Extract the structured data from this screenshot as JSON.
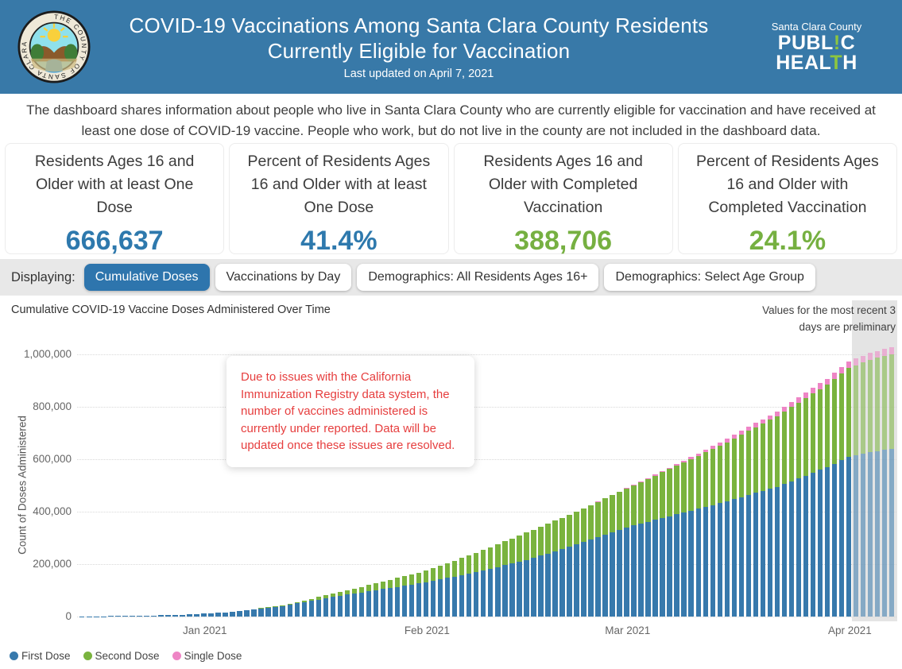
{
  "header": {
    "title_line1": "COVID-19 Vaccinations Among Santa Clara County Residents",
    "title_line2": "Currently Eligible for Vaccination",
    "last_updated": "Last updated on April 7, 2021",
    "seal_ring_text": "THE COUNTY OF SANTA CLARA",
    "ph_logo": {
      "line1": "Santa Clara County",
      "pub_a": "PUBL",
      "pub_b": "!",
      "pub_c": "C",
      "health_a": "HEAL",
      "health_b": "T",
      "health_c": "H",
      "accent_color": "#8dc63f"
    }
  },
  "intro": "The dashboard shares information about people who live in Santa Clara County who are currently eligible for vaccination and have received at least one dose of COVID-19 vaccine. People who work, but do not live in the county are not included in the dashboard data.",
  "stats": [
    {
      "label": "Residents Ages 16 and Older with at least One Dose",
      "value": "666,637",
      "color": "#2e79ad"
    },
    {
      "label": "Percent of Residents Ages 16 and Older with at least One Dose",
      "value": "41.4%",
      "color": "#2e79ad"
    },
    {
      "label": "Residents Ages 16 and Older with Completed Vaccination",
      "value": "388,706",
      "color": "#76b041"
    },
    {
      "label": "Percent of Residents Ages 16 and Older with Completed Vaccination",
      "value": "24.1%",
      "color": "#76b041"
    }
  ],
  "tabs": {
    "prefix": "Displaying:",
    "items": [
      {
        "label": "Cumulative Doses",
        "active": true
      },
      {
        "label": "Vaccinations by Day",
        "active": false
      },
      {
        "label": "Demographics: All Residents Ages 16+",
        "active": false
      },
      {
        "label": "Demographics: Select Age Group",
        "active": false
      }
    ]
  },
  "chart": {
    "title": "Cumulative COVID-19 Vaccine Doses Administered Over Time",
    "note": "Values for the most recent 3 days are preliminary"
  },
  "annotation": "Due to issues with the California Immunization Registry data system, the number of vaccines administered is currently under reported. Data will be updated once these issues are resolved.",
  "chart_data": {
    "type": "bar",
    "stacked": true,
    "title": "Cumulative COVID-19 Vaccine Doses Administered Over Time",
    "xlabel": "",
    "ylabel": "Count of Doses Administered",
    "ylim": [
      0,
      1000000
    ],
    "ytick_step": 200000,
    "ytick_labels": [
      "0",
      "200,000",
      "400,000",
      "600,000",
      "800,000",
      "1,000,000"
    ],
    "grid": "horizontal dotted",
    "legend_position": "bottom-left",
    "start_date": "2020-12-15",
    "end_date": "2021-04-07",
    "days": 114,
    "xticks": [
      {
        "label": "Jan 2021",
        "day": 17
      },
      {
        "label": "Feb 2021",
        "day": 48
      },
      {
        "label": "Mar 2021",
        "day": 76
      },
      {
        "label": "Apr 2021",
        "day": 107
      }
    ],
    "series": [
      {
        "name": "First Dose",
        "color": "#3779ac"
      },
      {
        "name": "Second Dose",
        "color": "#7ab33e"
      },
      {
        "name": "Single Dose",
        "color": "#ee85c5"
      }
    ],
    "interpolation": "cumulative daily values; linear between anchor days (estimated from pixels)",
    "anchors": [
      {
        "day": 0,
        "values": [
          300,
          0,
          0
        ]
      },
      {
        "day": 7,
        "values": [
          2500,
          0,
          0
        ]
      },
      {
        "day": 14,
        "values": [
          7000,
          100,
          0
        ]
      },
      {
        "day": 21,
        "values": [
          17000,
          700,
          0
        ]
      },
      {
        "day": 28,
        "values": [
          40000,
          3000,
          0
        ]
      },
      {
        "day": 35,
        "values": [
          75000,
          12000,
          0
        ]
      },
      {
        "day": 42,
        "values": [
          105000,
          28000,
          0
        ]
      },
      {
        "day": 48,
        "values": [
          130000,
          45000,
          0
        ]
      },
      {
        "day": 55,
        "values": [
          170000,
          72000,
          0
        ]
      },
      {
        "day": 62,
        "values": [
          215000,
          105000,
          0
        ]
      },
      {
        "day": 69,
        "values": [
          275000,
          125000,
          0
        ]
      },
      {
        "day": 76,
        "values": [
          340000,
          148000,
          1500
        ]
      },
      {
        "day": 83,
        "values": [
          390000,
          185000,
          6000
        ]
      },
      {
        "day": 90,
        "values": [
          440000,
          225000,
          13000
        ]
      },
      {
        "day": 97,
        "values": [
          495000,
          270000,
          18000
        ]
      },
      {
        "day": 104,
        "values": [
          570000,
          315000,
          22500
        ]
      },
      {
        "day": 107,
        "values": [
          610000,
          338000,
          24500
        ]
      },
      {
        "day": 110,
        "values": [
          628000,
          352000,
          26500
        ]
      },
      {
        "day": 113,
        "values": [
          639000,
          361000,
          27700
        ]
      }
    ],
    "final_totals": {
      "first_dose": 639000,
      "second_dose": 361000,
      "single_dose": 27700,
      "total": 1027700
    },
    "preliminary_band": {
      "from_day": 108,
      "color": "#e4e4e4",
      "bar_opacity": 0.55
    }
  }
}
